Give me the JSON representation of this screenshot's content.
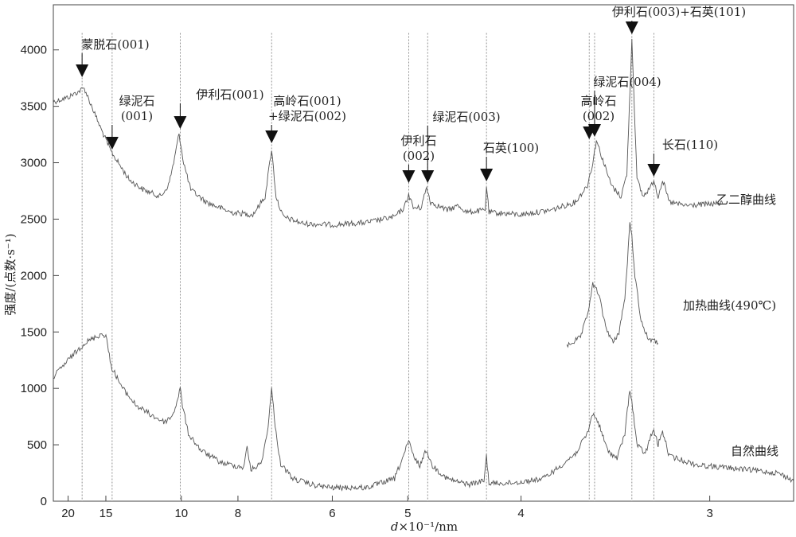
{
  "chart_data": {
    "type": "line",
    "title": "",
    "xlabel_italic": "d",
    "xlabel_rest": "×10⁻¹/nm",
    "ylabel": "强度/(点数·s⁻¹)",
    "x_axis_scale": "reciprocal",
    "x_ticks": [
      20,
      15,
      10,
      8,
      6,
      5,
      4,
      3
    ],
    "xlim": [
      23,
      2.7
    ],
    "y_ticks": [
      0,
      500,
      1000,
      1500,
      2000,
      2500,
      3000,
      3500,
      4000
    ],
    "ylim": [
      0,
      4400
    ],
    "series": [
      {
        "name": "乙二醇曲线",
        "baseline": [
          [
            23,
            3540
          ],
          [
            20,
            3580
          ],
          [
            17.5,
            3660
          ],
          [
            15.5,
            3300
          ],
          [
            14.5,
            3100
          ],
          [
            13,
            2850
          ],
          [
            12,
            2760
          ],
          [
            11,
            2700
          ],
          [
            10.6,
            2800
          ],
          [
            10.35,
            3000
          ],
          [
            10.1,
            3260
          ],
          [
            9.9,
            3000
          ],
          [
            9.6,
            2760
          ],
          [
            9,
            2650
          ],
          [
            8.2,
            2560
          ],
          [
            7.6,
            2540
          ],
          [
            7.3,
            2700
          ],
          [
            7.15,
            3120
          ],
          [
            7.05,
            2700
          ],
          [
            6.9,
            2520
          ],
          [
            6.5,
            2460
          ],
          [
            6,
            2450
          ],
          [
            5.5,
            2470
          ],
          [
            5.15,
            2520
          ],
          [
            5.04,
            2600
          ],
          [
            4.99,
            2720
          ],
          [
            4.94,
            2600
          ],
          [
            4.86,
            2600
          ],
          [
            4.8,
            2780
          ],
          [
            4.76,
            2650
          ],
          [
            4.6,
            2580
          ],
          [
            4.5,
            2620
          ],
          [
            4.42,
            2560
          ],
          [
            4.27,
            2580
          ],
          [
            4.26,
            2800
          ],
          [
            4.24,
            2560
          ],
          [
            4.0,
            2540
          ],
          [
            3.8,
            2580
          ],
          [
            3.65,
            2650
          ],
          [
            3.58,
            2800
          ],
          [
            3.55,
            3000
          ],
          [
            3.53,
            3200
          ],
          [
            3.5,
            3050
          ],
          [
            3.45,
            2800
          ],
          [
            3.4,
            2700
          ],
          [
            3.37,
            2900
          ],
          [
            3.345,
            4100
          ],
          [
            3.32,
            2850
          ],
          [
            3.29,
            2700
          ],
          [
            3.25,
            2800
          ],
          [
            3.24,
            2850
          ],
          [
            3.22,
            2700
          ],
          [
            3.2,
            2850
          ],
          [
            3.17,
            2650
          ],
          [
            3.1,
            2620
          ],
          [
            2.95,
            2640
          ]
        ]
      },
      {
        "name": "加热曲线(490℃)",
        "baseline": [
          [
            3.7,
            1380
          ],
          [
            3.62,
            1450
          ],
          [
            3.58,
            1650
          ],
          [
            3.55,
            1920
          ],
          [
            3.52,
            1850
          ],
          [
            3.48,
            1550
          ],
          [
            3.44,
            1400
          ],
          [
            3.41,
            1500
          ],
          [
            3.38,
            1800
          ],
          [
            3.355,
            2450
          ],
          [
            3.345,
            2350
          ],
          [
            3.33,
            2000
          ],
          [
            3.3,
            1600
          ],
          [
            3.27,
            1450
          ],
          [
            3.24,
            1420
          ],
          [
            3.22,
            1400
          ]
        ]
      },
      {
        "name": "自然曲线",
        "baseline": [
          [
            23,
            1100
          ],
          [
            20,
            1250
          ],
          [
            17.5,
            1400
          ],
          [
            15.5,
            1480
          ],
          [
            15,
            1470
          ],
          [
            14.5,
            1200
          ],
          [
            13.5,
            1000
          ],
          [
            12.5,
            850
          ],
          [
            11.5,
            760
          ],
          [
            10.8,
            700
          ],
          [
            10.4,
            760
          ],
          [
            10.2,
            880
          ],
          [
            10.05,
            1000
          ],
          [
            9.95,
            850
          ],
          [
            9.7,
            600
          ],
          [
            9.2,
            450
          ],
          [
            8.5,
            340
          ],
          [
            7.85,
            300
          ],
          [
            7.75,
            470
          ],
          [
            7.65,
            280
          ],
          [
            7.4,
            330
          ],
          [
            7.25,
            600
          ],
          [
            7.15,
            990
          ],
          [
            7.05,
            600
          ],
          [
            6.95,
            330
          ],
          [
            6.7,
            200
          ],
          [
            6.3,
            140
          ],
          [
            6,
            120
          ],
          [
            5.5,
            120
          ],
          [
            5.15,
            200
          ],
          [
            5.05,
            400
          ],
          [
            4.99,
            530
          ],
          [
            4.93,
            380
          ],
          [
            4.87,
            320
          ],
          [
            4.8,
            460
          ],
          [
            4.75,
            320
          ],
          [
            4.6,
            200
          ],
          [
            4.5,
            170
          ],
          [
            4.4,
            150
          ],
          [
            4.28,
            180
          ],
          [
            4.26,
            400
          ],
          [
            4.24,
            160
          ],
          [
            4.1,
            160
          ],
          [
            4.0,
            170
          ],
          [
            3.85,
            200
          ],
          [
            3.75,
            300
          ],
          [
            3.65,
            420
          ],
          [
            3.58,
            600
          ],
          [
            3.55,
            780
          ],
          [
            3.52,
            700
          ],
          [
            3.47,
            450
          ],
          [
            3.42,
            380
          ],
          [
            3.38,
            600
          ],
          [
            3.355,
            1000
          ],
          [
            3.345,
            880
          ],
          [
            3.32,
            500
          ],
          [
            3.28,
            420
          ],
          [
            3.25,
            600
          ],
          [
            3.24,
            620
          ],
          [
            3.22,
            500
          ],
          [
            3.2,
            620
          ],
          [
            3.17,
            400
          ],
          [
            3.05,
            320
          ],
          [
            2.9,
            290
          ],
          [
            2.75,
            250
          ],
          [
            2.7,
            180
          ]
        ]
      }
    ],
    "curve_labels": [
      "乙二醇曲线",
      "加热曲线(490℃)",
      "自然曲线"
    ],
    "annotations": [
      {
        "lines": [
          "蒙脱石(001)"
        ],
        "d": 17.8
      },
      {
        "lines": [
          "绿泥石",
          "(001)"
        ],
        "d": 14.4
      },
      {
        "lines": [
          "伊利石(001)"
        ],
        "d": 10.05
      },
      {
        "lines": [
          "高岭石(001)",
          "+绿泥石(002)"
        ],
        "d": 7.15
      },
      {
        "lines": [
          "伊利石",
          "(002)"
        ],
        "d": 4.99
      },
      {
        "lines": [
          "绿泥石(003)"
        ],
        "d": 4.79
      },
      {
        "lines": [
          "石英(100)"
        ],
        "d": 4.26
      },
      {
        "lines": [
          "高岭石",
          "(002)"
        ],
        "d": 3.57
      },
      {
        "lines": [
          "绿泥石(004)"
        ],
        "d": 3.54
      },
      {
        "lines": [
          "伊利石(003)+石英(101)"
        ],
        "d": 3.345
      },
      {
        "lines": [
          "长石(110)"
        ],
        "d": 3.24
      }
    ]
  }
}
